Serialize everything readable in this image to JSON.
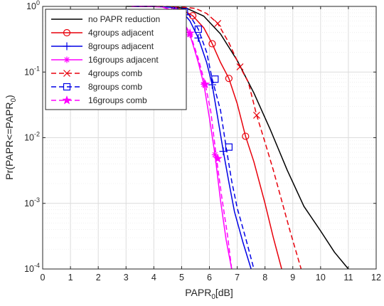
{
  "chart_data": {
    "type": "line",
    "xlabel": "PAPR",
    "xlabel_sub": "0",
    "xlabel_unit": "[dB]",
    "ylabel_parts": [
      "Pr(PAPR<=PAPR",
      "0",
      ")"
    ],
    "xlim": [
      0,
      12
    ],
    "ylim": [
      0.0001,
      1
    ],
    "yscale": "log",
    "grid": true,
    "minor_grid": true,
    "legend_position": "top-left",
    "xticks": [
      0,
      1,
      2,
      3,
      4,
      5,
      6,
      7,
      8,
      9,
      10,
      11,
      12
    ],
    "yticks": [
      {
        "value": 1,
        "base": "10",
        "exp": "0"
      },
      {
        "value": 0.1,
        "base": "10",
        "exp": "-1"
      },
      {
        "value": 0.01,
        "base": "10",
        "exp": "-2"
      },
      {
        "value": 0.001,
        "base": "10",
        "exp": "-3"
      },
      {
        "value": 0.0001,
        "base": "10",
        "exp": "-4"
      }
    ],
    "series": [
      {
        "name": "no PAPR reduction",
        "color": "#000000",
        "dash": "solid",
        "marker": "none",
        "x": [
          3.0,
          4.0,
          4.6,
          5.2,
          5.8,
          6.4,
          7.0,
          7.6,
          8.2,
          8.8,
          9.4,
          10.0,
          10.5,
          11.0
        ],
        "y": [
          1,
          1,
          0.99,
          0.93,
          0.71,
          0.38,
          0.15,
          0.048,
          0.013,
          0.0032,
          0.0009,
          0.00038,
          0.00018,
          0.0001
        ]
      },
      {
        "name": "4groups adjacent",
        "color": "#e8000b",
        "dash": "solid",
        "marker": "circle",
        "x": [
          3.3,
          4.0,
          4.6,
          5.0,
          5.4,
          5.8,
          6.1,
          6.4,
          6.7,
          7.0,
          7.3,
          7.6,
          8.0,
          8.3,
          8.6
        ],
        "y": [
          1,
          1,
          0.98,
          0.9,
          0.72,
          0.47,
          0.27,
          0.14,
          0.08,
          0.033,
          0.0105,
          0.0043,
          0.001,
          0.0003,
          0.0001
        ],
        "markers_x": [
          5.4,
          6.1,
          6.7,
          7.3
        ],
        "markers_y": [
          0.72,
          0.27,
          0.08,
          0.0105
        ]
      },
      {
        "name": "8groups adjacent",
        "color": "#0000e6",
        "dash": "solid",
        "marker": "plus",
        "x": [
          3.3,
          4.0,
          4.6,
          5.0,
          5.3,
          5.6,
          5.9,
          6.1,
          6.3,
          6.5,
          6.7,
          6.9,
          7.2,
          7.5
        ],
        "y": [
          1,
          1,
          0.97,
          0.85,
          0.6,
          0.33,
          0.14,
          0.064,
          0.02,
          0.0062,
          0.0021,
          0.00075,
          0.00026,
          0.0001
        ],
        "markers_x": [
          5.0,
          5.6,
          6.1,
          6.5
        ],
        "markers_y": [
          0.85,
          0.33,
          0.064,
          0.0062
        ]
      },
      {
        "name": "16groups adjacent",
        "color": "#ff00ff",
        "dash": "solid",
        "marker": "asterisk",
        "x": [
          3.2,
          3.8,
          4.3,
          4.7,
          5.0,
          5.3,
          5.6,
          5.8,
          6.0,
          6.2,
          6.4,
          6.6,
          6.8
        ],
        "y": [
          1,
          1,
          0.98,
          0.87,
          0.63,
          0.37,
          0.14,
          0.065,
          0.02,
          0.0055,
          0.0011,
          0.00028,
          0.0001
        ],
        "markers_x": [
          4.7,
          5.3,
          5.8,
          6.2
        ],
        "markers_y": [
          0.87,
          0.37,
          0.065,
          0.0055
        ]
      },
      {
        "name": "4groups comb",
        "color": "#e8000b",
        "dash": "dashed",
        "marker": "x",
        "x": [
          3.6,
          4.4,
          5.0,
          5.5,
          5.9,
          6.3,
          6.7,
          7.1,
          7.4,
          7.7,
          8.0,
          8.3,
          8.6,
          8.9,
          9.3
        ],
        "y": [
          1,
          1,
          0.98,
          0.93,
          0.78,
          0.55,
          0.28,
          0.12,
          0.07,
          0.022,
          0.0085,
          0.0032,
          0.0011,
          0.00038,
          0.0001
        ],
        "markers_x": [
          6.3,
          7.1,
          7.7
        ],
        "markers_y": [
          0.55,
          0.12,
          0.022
        ]
      },
      {
        "name": "8groups comb",
        "color": "#0000e6",
        "dash": "dashed",
        "marker": "square",
        "x": [
          3.3,
          4.0,
          4.6,
          5.0,
          5.3,
          5.6,
          5.9,
          6.1,
          6.4,
          6.6,
          6.8,
          7.0,
          7.3,
          7.6
        ],
        "y": [
          1,
          1,
          0.98,
          0.9,
          0.72,
          0.45,
          0.2,
          0.078,
          0.026,
          0.0072,
          0.0022,
          0.00085,
          0.0003,
          0.0001
        ],
        "markers_x": [
          5.1,
          5.6,
          6.2,
          6.7
        ],
        "markers_y": [
          0.83,
          0.45,
          0.078,
          0.0072
        ]
      },
      {
        "name": "16groups comb",
        "color": "#ff00ff",
        "dash": "dashed",
        "marker": "star",
        "x": [
          3.2,
          3.8,
          4.3,
          4.7,
          5.0,
          5.3,
          5.6,
          5.85,
          6.05,
          6.25,
          6.45,
          6.65,
          6.8
        ],
        "y": [
          1,
          1,
          0.98,
          0.87,
          0.64,
          0.39,
          0.16,
          0.065,
          0.025,
          0.005,
          0.0012,
          0.00033,
          0.0001
        ],
        "markers_x": [
          4.8,
          5.3,
          5.85,
          6.3
        ],
        "markers_y": [
          0.84,
          0.39,
          0.065,
          0.0048
        ]
      }
    ]
  }
}
